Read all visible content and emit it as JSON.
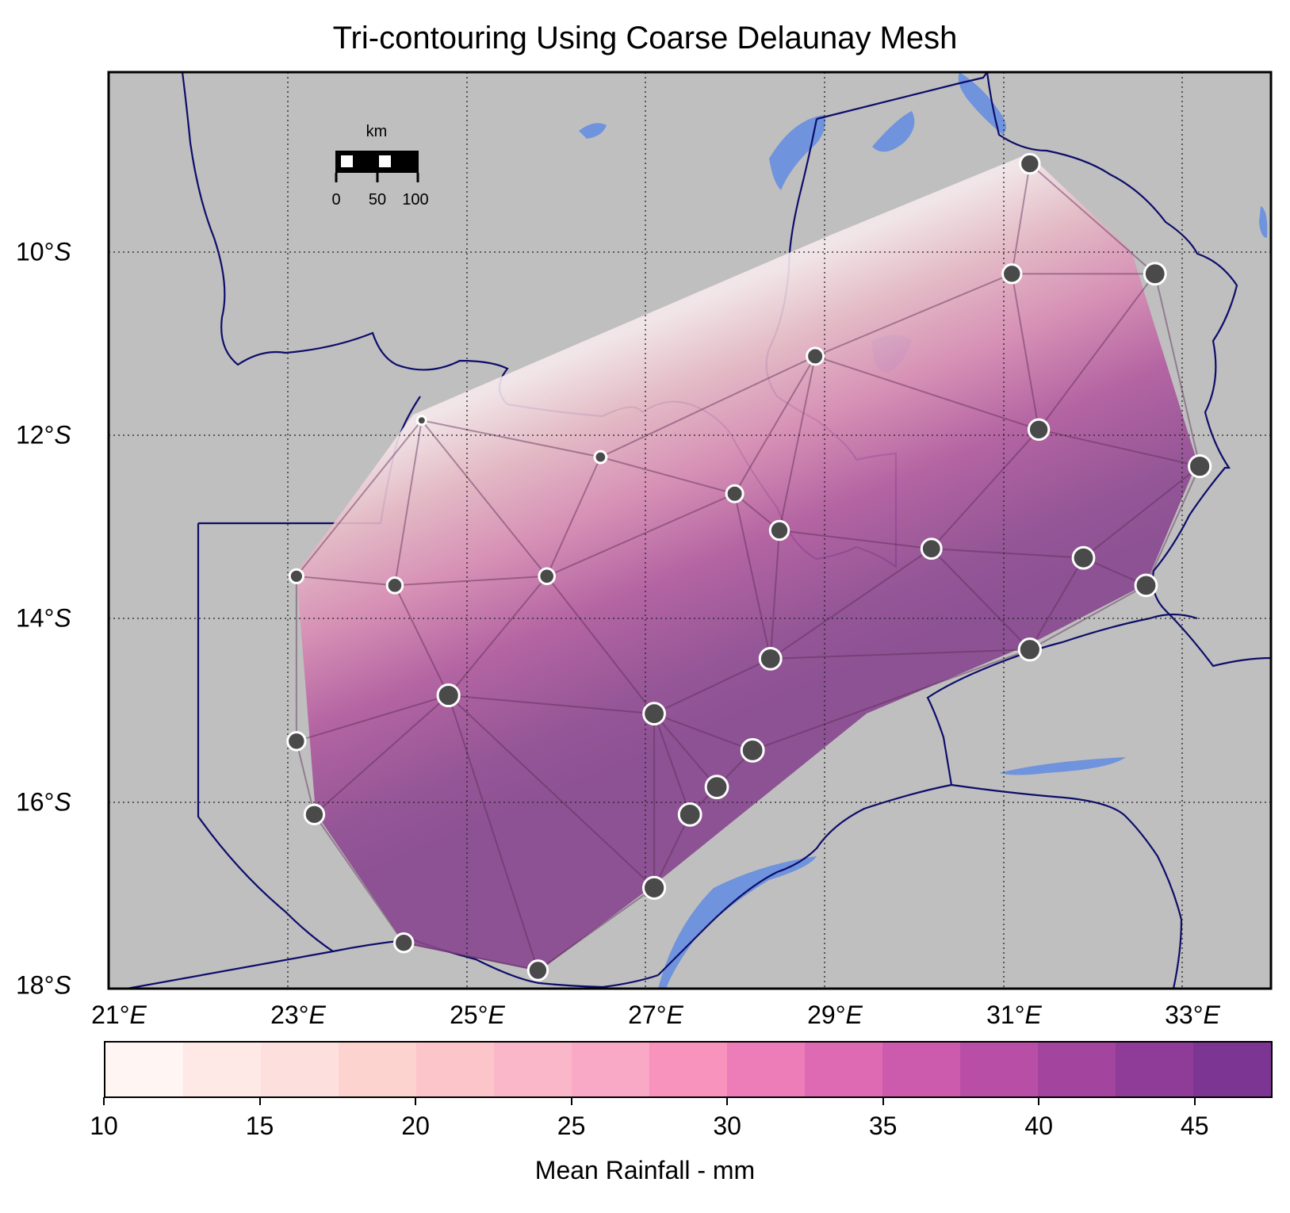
{
  "title": "Tri-contouring Using Coarse Delaunay Mesh",
  "x_ticks": [
    {
      "deg": "21",
      "hemi": "E"
    },
    {
      "deg": "23",
      "hemi": "E"
    },
    {
      "deg": "25",
      "hemi": "E"
    },
    {
      "deg": "27",
      "hemi": "E"
    },
    {
      "deg": "29",
      "hemi": "E"
    },
    {
      "deg": "31",
      "hemi": "E"
    },
    {
      "deg": "33",
      "hemi": "E"
    }
  ],
  "y_ticks": [
    {
      "deg": "10",
      "hemi": "S"
    },
    {
      "deg": "12",
      "hemi": "S"
    },
    {
      "deg": "14",
      "hemi": "S"
    },
    {
      "deg": "16",
      "hemi": "S"
    },
    {
      "deg": "18",
      "hemi": "S"
    }
  ],
  "scalebar": {
    "unit": "km",
    "labels": [
      "0",
      "50",
      "100"
    ]
  },
  "colorbar": {
    "label": "Mean Rainfall - mm",
    "ticks": [
      "10",
      "15",
      "20",
      "25",
      "30",
      "35",
      "40",
      "45"
    ],
    "colors": [
      "#fff5f2",
      "#fee9e6",
      "#fde0dd",
      "#fcd3cf",
      "#fbc5ca",
      "#fab7c9",
      "#f9a8c5",
      "#f893bd",
      "#ed7db8",
      "#de6ab3",
      "#cc5aad",
      "#b94ea6",
      "#a3449f",
      "#8f3c98",
      "#7c3592"
    ]
  },
  "chart_data": {
    "type": "map",
    "title": "Tri-contouring Using Coarse Delaunay Mesh",
    "lon_range": [
      21,
      34
    ],
    "lat_range": [
      -18,
      -8
    ],
    "colorbar_label": "Mean Rainfall - mm",
    "colorbar_range": [
      10,
      47.5
    ],
    "stations": [
      {
        "lon": 31.3,
        "lat": -9.0,
        "rain": 40
      },
      {
        "lon": 31.1,
        "lat": -10.2,
        "rain": 38
      },
      {
        "lon": 32.7,
        "lat": -10.2,
        "rain": 45
      },
      {
        "lon": 28.9,
        "lat": -11.1,
        "rain": 33
      },
      {
        "lon": 31.4,
        "lat": -11.9,
        "rain": 42
      },
      {
        "lon": 33.2,
        "lat": -12.3,
        "rain": 46
      },
      {
        "lon": 24.5,
        "lat": -11.8,
        "rain": 12
      },
      {
        "lon": 26.5,
        "lat": -12.2,
        "rain": 20
      },
      {
        "lon": 28.0,
        "lat": -12.6,
        "rain": 33
      },
      {
        "lon": 28.5,
        "lat": -13.0,
        "rain": 38
      },
      {
        "lon": 30.2,
        "lat": -13.2,
        "rain": 41
      },
      {
        "lon": 31.9,
        "lat": -13.3,
        "rain": 45
      },
      {
        "lon": 32.6,
        "lat": -13.6,
        "rain": 45
      },
      {
        "lon": 23.1,
        "lat": -13.5,
        "rain": 25
      },
      {
        "lon": 24.2,
        "lat": -13.6,
        "rain": 30
      },
      {
        "lon": 25.9,
        "lat": -13.5,
        "rain": 30
      },
      {
        "lon": 31.3,
        "lat": -14.3,
        "rain": 46
      },
      {
        "lon": 28.4,
        "lat": -14.4,
        "rain": 45
      },
      {
        "lon": 24.8,
        "lat": -14.8,
        "rain": 46
      },
      {
        "lon": 27.1,
        "lat": -15.0,
        "rain": 45
      },
      {
        "lon": 28.2,
        "lat": -15.4,
        "rain": 47
      },
      {
        "lon": 27.8,
        "lat": -15.8,
        "rain": 47
      },
      {
        "lon": 27.5,
        "lat": -16.1,
        "rain": 47
      },
      {
        "lon": 23.1,
        "lat": -15.3,
        "rain": 36
      },
      {
        "lon": 23.3,
        "lat": -16.1,
        "rain": 40
      },
      {
        "lon": 27.1,
        "lat": -16.9,
        "rain": 46
      },
      {
        "lon": 24.3,
        "lat": -17.5,
        "rain": 38
      },
      {
        "lon": 25.8,
        "lat": -17.8,
        "rain": 40
      }
    ]
  }
}
